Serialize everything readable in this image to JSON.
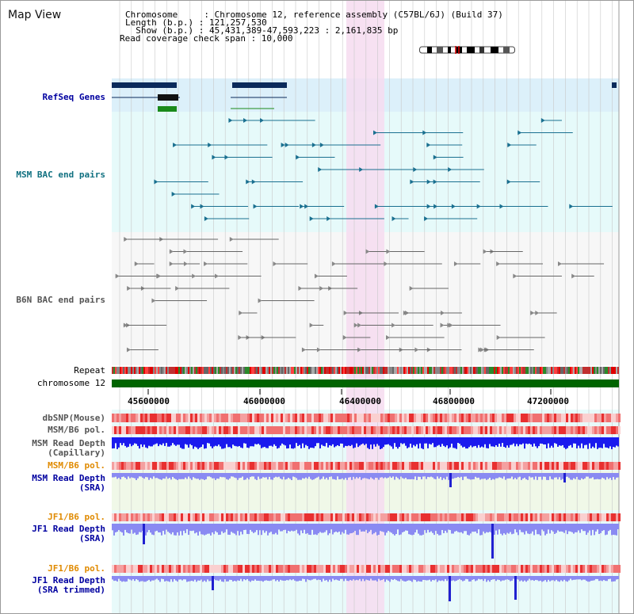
{
  "title": "Map View",
  "info": {
    "chromosome": "Chromosome     : Chromosome 12, reference assembly (C57BL/6J) (Build 37)",
    "length": "Length (b.p.) : 121,257,530",
    "show": "  Show (b.p.) : 45,431,389-47,593,223 : 2,161,835 bp",
    "span": "Read coverage check span : 10,000"
  },
  "tracks": {
    "refseq": "RefSeq Genes",
    "msm_bac": "MSM BAC end pairs",
    "b6n_bac": "B6N BAC end pairs",
    "repeat": "Repeat",
    "chromosome": "chromosome 12",
    "dbsnp": "dbSNP(Mouse)",
    "msm_b6_pol_1": "MSM/B6 pol.",
    "msm_depth_cap_1": "MSM Read Depth",
    "msm_depth_cap_2": "(Capillary)",
    "msm_b6_pol_2": "MSM/B6 pol.",
    "msm_depth_sra_1": "MSM Read Depth",
    "msm_depth_sra_2": "(SRA)",
    "jf1_b6_pol_1": "JF1/B6 pol.",
    "jf1_depth_sra_1": "JF1 Read Depth",
    "jf1_depth_sra_2": "(SRA)",
    "jf1_b6_pol_2": "JF1/B6 pol.",
    "jf1_depth_trim_1": "JF1 Read Depth",
    "jf1_depth_trim_2": "(SRA trimmed)"
  },
  "axis_ticks": [
    "45600000",
    "46000000",
    "46400000",
    "46800000",
    "47200000"
  ],
  "colors": {
    "refseq_bg": "#dcf0fa",
    "bac_bg": "#e6fafa",
    "b6n_bg": "#f7f7f7",
    "highlight": "#f6dcf0",
    "refseq_gene": "#0a2a5a",
    "msm_bac": "#1a7090",
    "b6n_bac": "#666666",
    "chromosome_bar": "#006400",
    "depth_cap": "#1a1aee",
    "depth_sra": "#8a8af2",
    "label_blue": "#0000a0",
    "label_orange": "#e08a00",
    "label_teal": "#107080"
  }
}
